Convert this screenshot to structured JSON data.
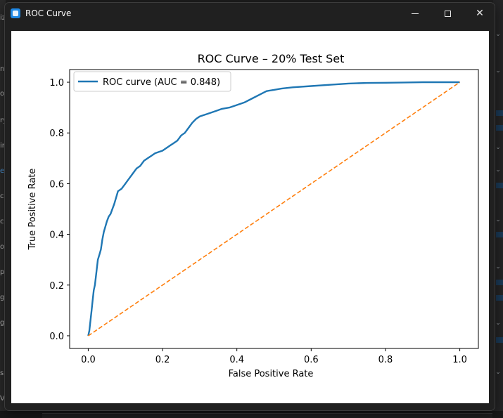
{
  "window": {
    "title": "ROC Curve",
    "app_icon": "app-window-icon",
    "controls": [
      "minimize-icon",
      "maximize-icon",
      "close-icon"
    ]
  },
  "background": {
    "left_letters": [
      "iz",
      "nt",
      "o",
      "ry",
      "ir",
      "e",
      "c",
      "c",
      "o",
      "p",
      "g",
      "g",
      "s",
      "V"
    ]
  },
  "chart_data": {
    "type": "line",
    "title": "ROC Curve – 20% Test Set",
    "xlabel": "False Positive Rate",
    "ylabel": "True Positive Rate",
    "xlim": [
      -0.05,
      1.05
    ],
    "ylim": [
      -0.05,
      1.05
    ],
    "xticks": [
      0.0,
      0.2,
      0.4,
      0.6,
      0.8,
      1.0
    ],
    "xtick_labels": [
      "0.0",
      "0.2",
      "0.4",
      "0.6",
      "0.8",
      "1.0"
    ],
    "yticks": [
      0.0,
      0.2,
      0.4,
      0.6,
      0.8,
      1.0
    ],
    "ytick_labels": [
      "0.0",
      "0.2",
      "0.4",
      "0.6",
      "0.8",
      "1.0"
    ],
    "grid": false,
    "legend": {
      "position": "upper-left",
      "entries": [
        "ROC curve (AUC = 0.848)"
      ]
    },
    "series": [
      {
        "name": "ROC curve (AUC = 0.848)",
        "color": "#1f77b4",
        "style": "solid",
        "x": [
          0.0,
          0.003,
          0.006,
          0.009,
          0.012,
          0.015,
          0.018,
          0.022,
          0.026,
          0.03,
          0.034,
          0.038,
          0.042,
          0.046,
          0.05,
          0.055,
          0.06,
          0.07,
          0.08,
          0.09,
          0.1,
          0.11,
          0.12,
          0.13,
          0.14,
          0.15,
          0.16,
          0.17,
          0.18,
          0.19,
          0.2,
          0.21,
          0.22,
          0.23,
          0.24,
          0.25,
          0.26,
          0.27,
          0.28,
          0.29,
          0.3,
          0.31,
          0.32,
          0.34,
          0.36,
          0.38,
          0.4,
          0.42,
          0.44,
          0.46,
          0.48,
          0.5,
          0.52,
          0.55,
          0.6,
          0.65,
          0.7,
          0.75,
          0.8,
          0.85,
          0.9,
          0.95,
          1.0
        ],
        "y": [
          0.0,
          0.02,
          0.06,
          0.1,
          0.14,
          0.18,
          0.2,
          0.25,
          0.3,
          0.32,
          0.34,
          0.38,
          0.41,
          0.43,
          0.45,
          0.47,
          0.48,
          0.52,
          0.57,
          0.58,
          0.6,
          0.62,
          0.64,
          0.66,
          0.67,
          0.69,
          0.7,
          0.71,
          0.72,
          0.725,
          0.73,
          0.74,
          0.75,
          0.76,
          0.77,
          0.79,
          0.8,
          0.82,
          0.84,
          0.855,
          0.865,
          0.87,
          0.875,
          0.885,
          0.895,
          0.9,
          0.91,
          0.92,
          0.935,
          0.95,
          0.965,
          0.97,
          0.975,
          0.98,
          0.985,
          0.99,
          0.995,
          0.997,
          0.998,
          0.999,
          1.0,
          1.0,
          1.0
        ]
      },
      {
        "color": "#ff7f0e",
        "style": "dashed",
        "x": [
          0.0,
          1.0
        ],
        "y": [
          0.0,
          1.0
        ]
      }
    ]
  }
}
